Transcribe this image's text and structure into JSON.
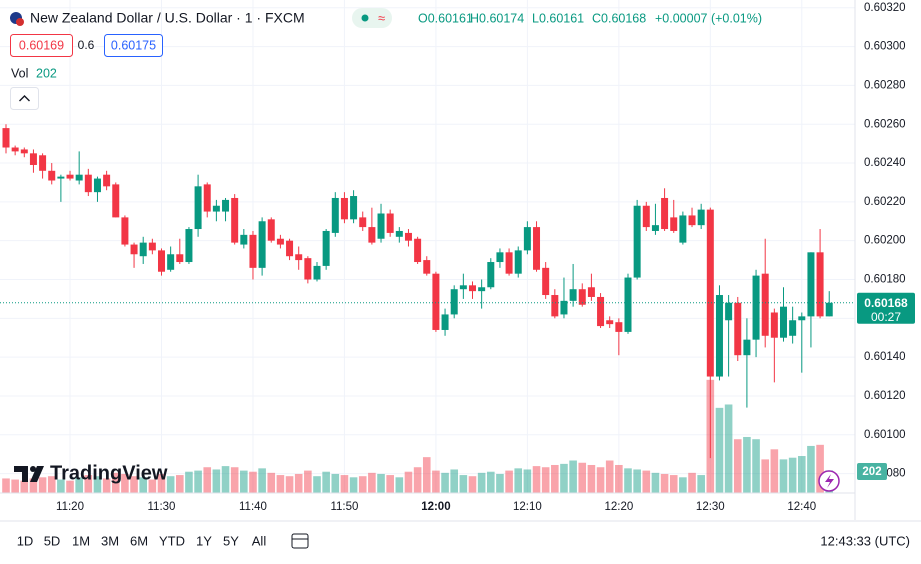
{
  "chart_data": {
    "type": "candlestick",
    "title": "New Zealand Dollar / U.S. Dollar · 1 · FXCM",
    "legend": [
      "O0.60161",
      "H0.60174",
      "L0.60161",
      "C0.60168",
      "+0.00007 (+0.01%)"
    ],
    "bid": "0.60169",
    "spread": "0.6",
    "ask": "0.60175",
    "volume_label": "Vol",
    "volume_last": "202",
    "last_price": {
      "value": 0.60168,
      "label": "0.60168"
    },
    "countdown": "00:27",
    "brand": "TradingView",
    "clock": "12:43:33 (UTC)",
    "ranges": [
      "1D",
      "5D",
      "1M",
      "3M",
      "6M",
      "YTD",
      "1Y",
      "5Y",
      "All"
    ],
    "up_color": "#089981",
    "down_color": "#f23645",
    "grid": true,
    "categories": [
      null,
      null,
      null,
      null,
      null,
      null,
      null,
      "11:20",
      null,
      null,
      null,
      null,
      null,
      null,
      null,
      null,
      null,
      "11:30",
      null,
      null,
      null,
      null,
      null,
      null,
      null,
      null,
      null,
      "11:40",
      null,
      null,
      null,
      null,
      null,
      null,
      null,
      null,
      null,
      "11:50",
      null,
      null,
      null,
      null,
      null,
      null,
      null,
      null,
      null,
      "12:00",
      null,
      null,
      null,
      null,
      null,
      null,
      null,
      null,
      null,
      "12:10",
      null,
      null,
      null,
      null,
      null,
      null,
      null,
      null,
      null,
      "12:20",
      null,
      null,
      null,
      null,
      null,
      null,
      null,
      null,
      null,
      "12:30",
      null,
      null,
      null,
      null,
      null,
      null,
      null,
      null,
      null,
      "12:40",
      null,
      null,
      null
    ],
    "open": [
      0.60258,
      0.60248,
      0.60247,
      0.60245,
      0.60244,
      0.60236,
      0.60232,
      0.60234,
      0.60231,
      0.60234,
      0.60225,
      0.60234,
      0.60229,
      0.60212,
      0.60198,
      0.60192,
      0.60199,
      0.60195,
      0.60185,
      0.60193,
      0.60189,
      0.60206,
      0.60229,
      0.60215,
      0.60215,
      0.60222,
      0.60198,
      0.60203,
      0.60186,
      0.60211,
      0.60201,
      0.602,
      0.60193,
      0.60191,
      0.6018,
      0.60187,
      0.60204,
      0.60222,
      0.60211,
      0.60212,
      0.60207,
      0.60201,
      0.60214,
      0.60202,
      0.60204,
      0.60201,
      0.6019,
      0.60183,
      0.60154,
      0.60162,
      0.60175,
      0.60177,
      0.60174,
      0.60176,
      0.60189,
      0.60194,
      0.60183,
      0.60195,
      0.60207,
      0.60186,
      0.60172,
      0.60162,
      0.60169,
      0.60175,
      0.60176,
      0.60171,
      0.60159,
      0.60158,
      0.60153,
      0.60181,
      0.60218,
      0.60205,
      0.60222,
      0.60212,
      0.60199,
      0.60213,
      0.60208,
      0.60216,
      0.6013,
      0.60159,
      0.60168,
      0.60141,
      0.60149,
      0.60183,
      0.60163,
      0.6015,
      0.60151,
      0.60159,
      0.60161,
      0.60194,
      0.60161
    ],
    "high": [
      0.6026,
      0.60249,
      0.60248,
      0.60247,
      0.60245,
      0.6024,
      0.60234,
      0.60236,
      0.60246,
      0.60237,
      0.60233,
      0.60236,
      0.6023,
      0.60213,
      0.60199,
      0.60202,
      0.60201,
      0.60196,
      0.60197,
      0.60201,
      0.60207,
      0.60234,
      0.6023,
      0.60221,
      0.60222,
      0.60224,
      0.60206,
      0.60205,
      0.60212,
      0.60212,
      0.60203,
      0.60201,
      0.60197,
      0.60192,
      0.60189,
      0.60206,
      0.60225,
      0.60225,
      0.60226,
      0.60215,
      0.60217,
      0.60219,
      0.60216,
      0.60207,
      0.60206,
      0.60202,
      0.60192,
      0.60184,
      0.60165,
      0.60177,
      0.60183,
      0.60179,
      0.6018,
      0.60191,
      0.60196,
      0.60196,
      0.60197,
      0.6021,
      0.6021,
      0.60189,
      0.60175,
      0.60181,
      0.60188,
      0.60178,
      0.60183,
      0.60173,
      0.60161,
      0.6016,
      0.60183,
      0.60221,
      0.6022,
      0.60219,
      0.60227,
      0.60221,
      0.60215,
      0.60217,
      0.60219,
      0.60217,
      0.60177,
      0.60172,
      0.60171,
      0.6016,
      0.60185,
      0.60201,
      0.60165,
      0.60176,
      0.60166,
      0.60163,
      0.60194,
      0.60206,
      0.60174
    ],
    "low": [
      0.60245,
      0.60244,
      0.60243,
      0.60235,
      0.60232,
      0.60229,
      0.6022,
      0.60231,
      0.60229,
      0.60223,
      0.6022,
      0.60226,
      0.60212,
      0.60197,
      0.60186,
      0.60188,
      0.60193,
      0.60182,
      0.60184,
      0.60188,
      0.60188,
      0.60202,
      0.60212,
      0.6021,
      0.6021,
      0.60198,
      0.60196,
      0.6018,
      0.60182,
      0.60199,
      0.60196,
      0.6019,
      0.60185,
      0.60178,
      0.60179,
      0.60185,
      0.60202,
      0.60209,
      0.60209,
      0.60205,
      0.60198,
      0.60199,
      0.60202,
      0.60199,
      0.60197,
      0.60188,
      0.60182,
      0.60153,
      0.60151,
      0.6016,
      0.6017,
      0.6017,
      0.60165,
      0.60175,
      0.60186,
      0.60182,
      0.60181,
      0.60193,
      0.60184,
      0.6017,
      0.6016,
      0.6016,
      0.60166,
      0.60166,
      0.60169,
      0.60155,
      0.60155,
      0.60141,
      0.60152,
      0.6018,
      0.60205,
      0.60203,
      0.60205,
      0.60204,
      0.60198,
      0.60207,
      0.60206,
      0.60088,
      0.60128,
      0.6013,
      0.60138,
      0.60114,
      0.6014,
      0.60145,
      0.60127,
      0.60148,
      0.60147,
      0.60132,
      0.60145,
      0.6016,
      0.60161
    ],
    "close": [
      0.60248,
      0.60246,
      0.60245,
      0.60239,
      0.60236,
      0.60231,
      0.60233,
      0.60232,
      0.60234,
      0.60225,
      0.60232,
      0.60228,
      0.60212,
      0.60198,
      0.60193,
      0.60199,
      0.60195,
      0.60184,
      0.60193,
      0.60189,
      0.60206,
      0.60228,
      0.60215,
      0.60218,
      0.60221,
      0.60199,
      0.60203,
      0.60186,
      0.6021,
      0.602,
      0.60198,
      0.60192,
      0.6019,
      0.6018,
      0.60187,
      0.60205,
      0.60222,
      0.60211,
      0.60223,
      0.60207,
      0.60199,
      0.60214,
      0.60204,
      0.60205,
      0.602,
      0.60189,
      0.60183,
      0.60154,
      0.60162,
      0.60175,
      0.60177,
      0.60174,
      0.60176,
      0.60189,
      0.60194,
      0.60183,
      0.60195,
      0.60207,
      0.60185,
      0.60172,
      0.60161,
      0.60169,
      0.60175,
      0.60167,
      0.60171,
      0.60156,
      0.60157,
      0.60153,
      0.60181,
      0.60218,
      0.60207,
      0.60208,
      0.60206,
      0.60205,
      0.60213,
      0.60208,
      0.60216,
      0.6013,
      0.60172,
      0.60168,
      0.60141,
      0.60149,
      0.60182,
      0.60151,
      0.6015,
      0.60166,
      0.60159,
      0.60161,
      0.60194,
      0.60161,
      0.60168
    ],
    "volume": [
      130,
      120,
      110,
      130,
      140,
      150,
      120,
      110,
      140,
      160,
      150,
      130,
      180,
      170,
      150,
      140,
      120,
      170,
      150,
      160,
      190,
      200,
      230,
      210,
      240,
      230,
      200,
      190,
      220,
      180,
      160,
      150,
      170,
      200,
      150,
      190,
      170,
      160,
      140,
      150,
      180,
      170,
      160,
      140,
      190,
      230,
      320,
      200,
      180,
      210,
      160,
      150,
      180,
      190,
      170,
      200,
      220,
      210,
      240,
      230,
      250,
      260,
      290,
      270,
      250,
      230,
      290,
      250,
      220,
      210,
      200,
      180,
      170,
      160,
      140,
      180,
      160,
      1010,
      760,
      790,
      480,
      500,
      480,
      300,
      390,
      300,
      315,
      330,
      420,
      430,
      202
    ],
    "ylim": [
      0.6007,
      0.60324
    ],
    "volume_ylim": [
      0,
      4400
    ],
    "yticks": [
      {
        "value": 0.6008,
        "label": "0.60080"
      },
      {
        "value": 0.601,
        "label": "0.60100"
      },
      {
        "value": 0.6012,
        "label": "0.60120"
      },
      {
        "value": 0.6014,
        "label": "0.60140"
      },
      {
        "value": 0.6016,
        "label": "0.60160"
      },
      {
        "value": 0.6018,
        "label": "0.60180"
      },
      {
        "value": 0.602,
        "label": "0.60200"
      },
      {
        "value": 0.6022,
        "label": "0.60220"
      },
      {
        "value": 0.6024,
        "label": "0.60240"
      },
      {
        "value": 0.6026,
        "label": "0.60260"
      },
      {
        "value": 0.6028,
        "label": "0.60280"
      },
      {
        "value": 0.603,
        "label": "0.60300"
      },
      {
        "value": 0.6032,
        "label": "0.60320"
      }
    ]
  }
}
